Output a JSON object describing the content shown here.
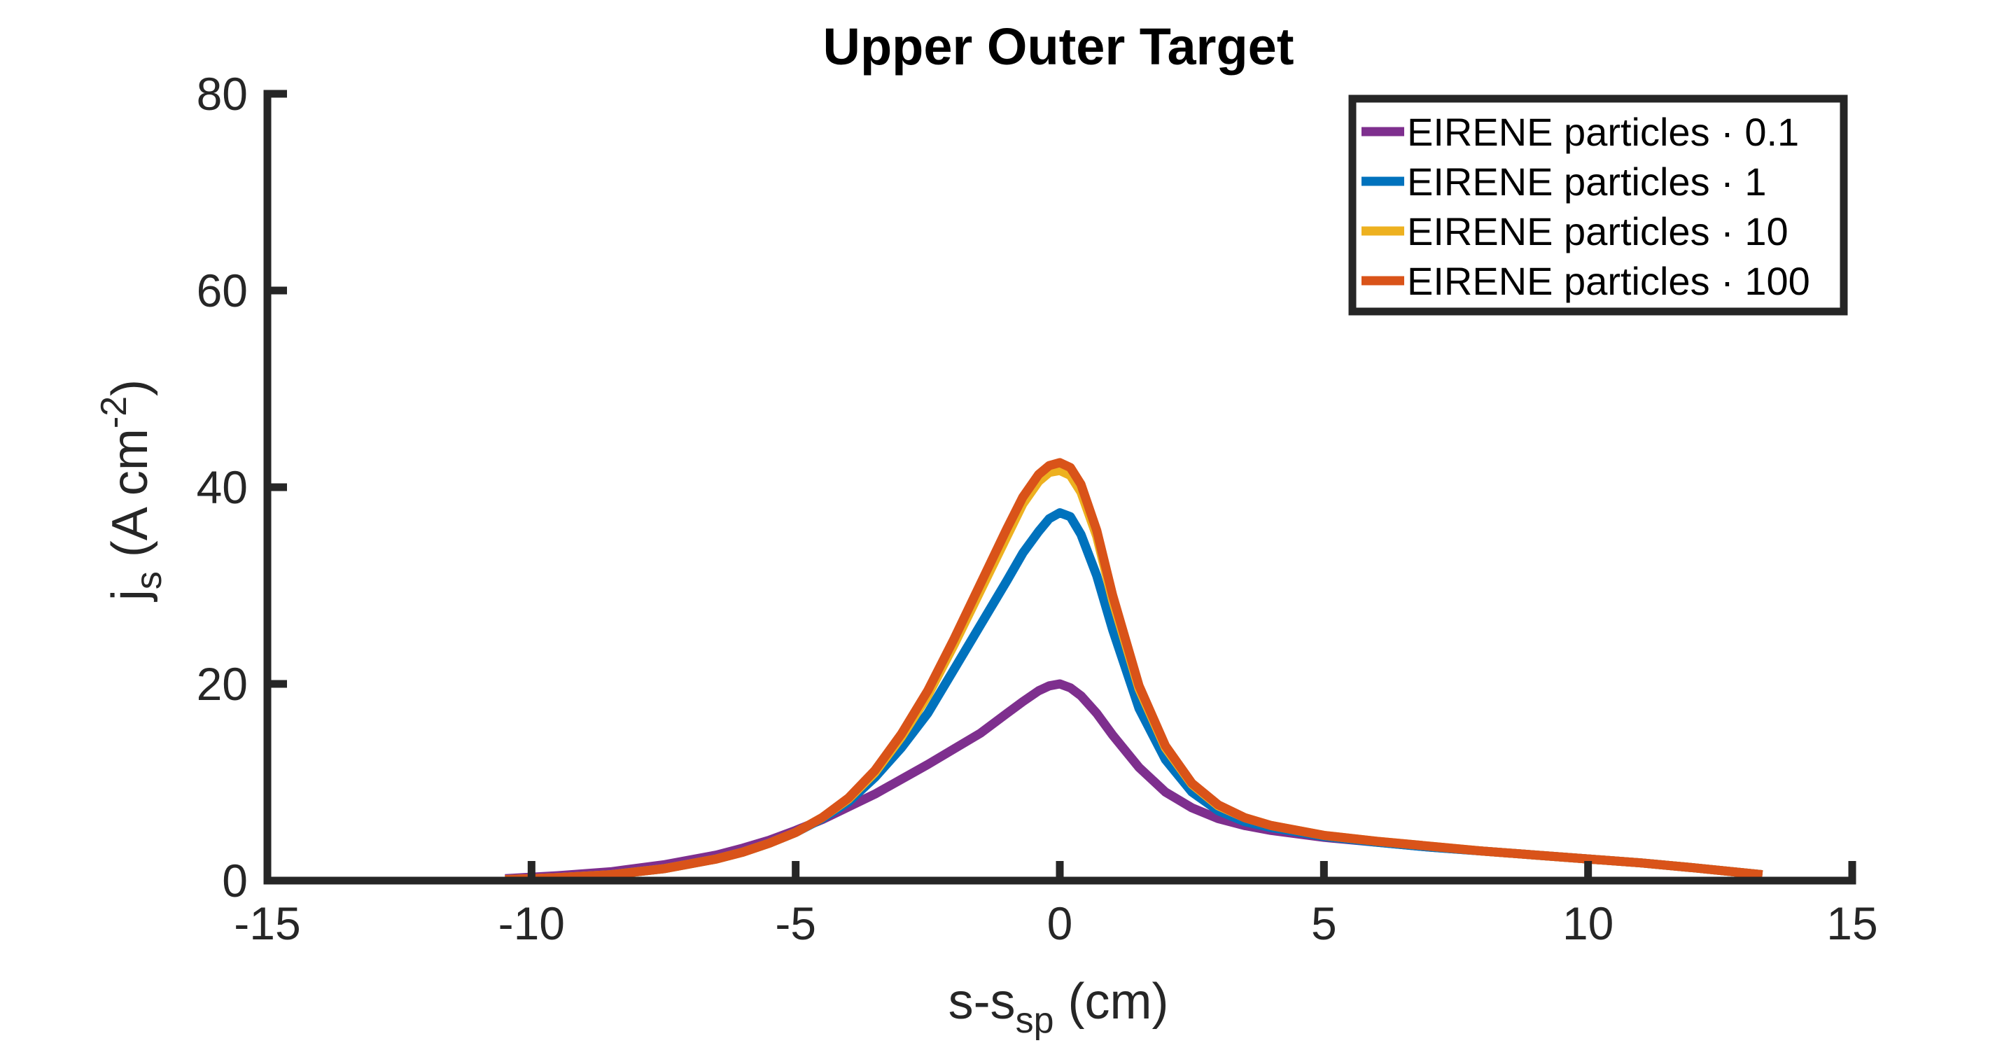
{
  "chart_data": {
    "type": "line",
    "title": "Upper Outer Target",
    "xlabel": {
      "main": "s-s",
      "sub": "sp",
      "tail": " (cm)"
    },
    "ylabel": {
      "main": "j",
      "sub": "s",
      "mid": " (A cm",
      "sup": "-2",
      "tail": ")"
    },
    "xlim": [
      -15,
      15
    ],
    "ylim": [
      0,
      80
    ],
    "xticks": [
      -15,
      -10,
      -5,
      0,
      5,
      10,
      15
    ],
    "xtick_labels": [
      "-15",
      "-10",
      "-5",
      "0",
      "5",
      "10",
      "15"
    ],
    "yticks": [
      0,
      20,
      40,
      60,
      80
    ],
    "ytick_labels": [
      "0",
      "20",
      "40",
      "60",
      "80"
    ],
    "grid": false,
    "legend_position": "top-right",
    "colors": {
      "axis": "#262626"
    },
    "series": [
      {
        "name": "EIRENE particles · 0.1",
        "color": "#7E2F8E",
        "x": [
          -10.5,
          -9.5,
          -8.5,
          -7.5,
          -6.5,
          -6.0,
          -5.5,
          -5.0,
          -4.5,
          -4.0,
          -3.5,
          -3.0,
          -2.5,
          -2.0,
          -1.5,
          -1.0,
          -0.7,
          -0.4,
          -0.2,
          0.0,
          0.2,
          0.4,
          0.7,
          1.0,
          1.5,
          2.0,
          2.5,
          3.0,
          3.5,
          4.0,
          5.0,
          6.0,
          7.0,
          8.0,
          9.0,
          10.0,
          11.0,
          12.0,
          13.3
        ],
        "y": [
          0.2,
          0.5,
          0.9,
          1.6,
          2.6,
          3.3,
          4.1,
          5.1,
          6.2,
          7.5,
          8.8,
          10.3,
          11.8,
          13.4,
          15.0,
          17.0,
          18.2,
          19.3,
          19.8,
          20.0,
          19.6,
          18.8,
          17.0,
          14.8,
          11.5,
          9.0,
          7.4,
          6.3,
          5.6,
          5.1,
          4.4,
          3.9,
          3.4,
          3.0,
          2.6,
          2.2,
          1.8,
          1.3,
          0.6
        ]
      },
      {
        "name": "EIRENE particles · 1",
        "color": "#0072BD",
        "x": [
          -10.5,
          -9.5,
          -8.5,
          -7.5,
          -6.5,
          -6.0,
          -5.5,
          -5.0,
          -4.5,
          -4.0,
          -3.5,
          -3.0,
          -2.5,
          -2.0,
          -1.5,
          -1.0,
          -0.7,
          -0.4,
          -0.2,
          0.0,
          0.2,
          0.4,
          0.7,
          1.0,
          1.5,
          2.0,
          2.5,
          3.0,
          3.5,
          4.0,
          5.0,
          6.0,
          7.0,
          8.0,
          9.0,
          10.0,
          11.0,
          12.0,
          13.3
        ],
        "y": [
          0.1,
          0.3,
          0.6,
          1.2,
          2.2,
          2.9,
          3.8,
          4.9,
          6.3,
          8.0,
          10.5,
          13.5,
          17.0,
          21.5,
          26.0,
          30.5,
          33.3,
          35.5,
          36.8,
          37.4,
          37.0,
          35.2,
          31.0,
          25.5,
          17.5,
          12.3,
          9.0,
          7.1,
          6.0,
          5.4,
          4.5,
          3.9,
          3.4,
          3.0,
          2.6,
          2.2,
          1.8,
          1.3,
          0.6
        ]
      },
      {
        "name": "EIRENE particles · 10",
        "color": "#EDB120",
        "x": [
          -10.5,
          -9.5,
          -8.5,
          -7.5,
          -6.5,
          -6.0,
          -5.5,
          -5.0,
          -4.5,
          -4.0,
          -3.5,
          -3.0,
          -2.5,
          -2.0,
          -1.5,
          -1.0,
          -0.7,
          -0.4,
          -0.2,
          0.0,
          0.2,
          0.4,
          0.7,
          1.0,
          1.5,
          2.0,
          2.5,
          3.0,
          3.5,
          4.0,
          5.0,
          6.0,
          7.0,
          8.0,
          9.0,
          10.0,
          11.0,
          12.0,
          13.3
        ],
        "y": [
          0.1,
          0.3,
          0.6,
          1.2,
          2.2,
          2.9,
          3.8,
          4.9,
          6.4,
          8.3,
          11.0,
          14.6,
          18.8,
          24.0,
          29.5,
          35.0,
          38.3,
          40.6,
          41.5,
          41.7,
          41.2,
          39.5,
          35.0,
          28.5,
          19.5,
          13.5,
          9.8,
          7.6,
          6.4,
          5.6,
          4.6,
          4.0,
          3.5,
          3.0,
          2.6,
          2.2,
          1.8,
          1.3,
          0.6
        ]
      },
      {
        "name": "EIRENE particles · 100",
        "color": "#D95319",
        "x": [
          -10.5,
          -9.5,
          -8.5,
          -7.5,
          -6.5,
          -6.0,
          -5.5,
          -5.0,
          -4.5,
          -4.0,
          -3.5,
          -3.0,
          -2.5,
          -2.0,
          -1.5,
          -1.0,
          -0.7,
          -0.4,
          -0.2,
          0.0,
          0.2,
          0.4,
          0.7,
          1.0,
          1.5,
          2.0,
          2.5,
          3.0,
          3.5,
          4.0,
          5.0,
          6.0,
          7.0,
          8.0,
          9.0,
          10.0,
          11.0,
          12.0,
          13.3
        ],
        "y": [
          0.1,
          0.3,
          0.6,
          1.2,
          2.2,
          2.9,
          3.8,
          4.9,
          6.4,
          8.4,
          11.2,
          14.9,
          19.3,
          24.6,
          30.2,
          35.8,
          39.0,
          41.3,
          42.2,
          42.5,
          42.0,
          40.3,
          35.6,
          29.0,
          19.8,
          13.7,
          9.9,
          7.7,
          6.4,
          5.6,
          4.6,
          4.0,
          3.5,
          3.0,
          2.6,
          2.2,
          1.8,
          1.3,
          0.6
        ]
      }
    ]
  }
}
